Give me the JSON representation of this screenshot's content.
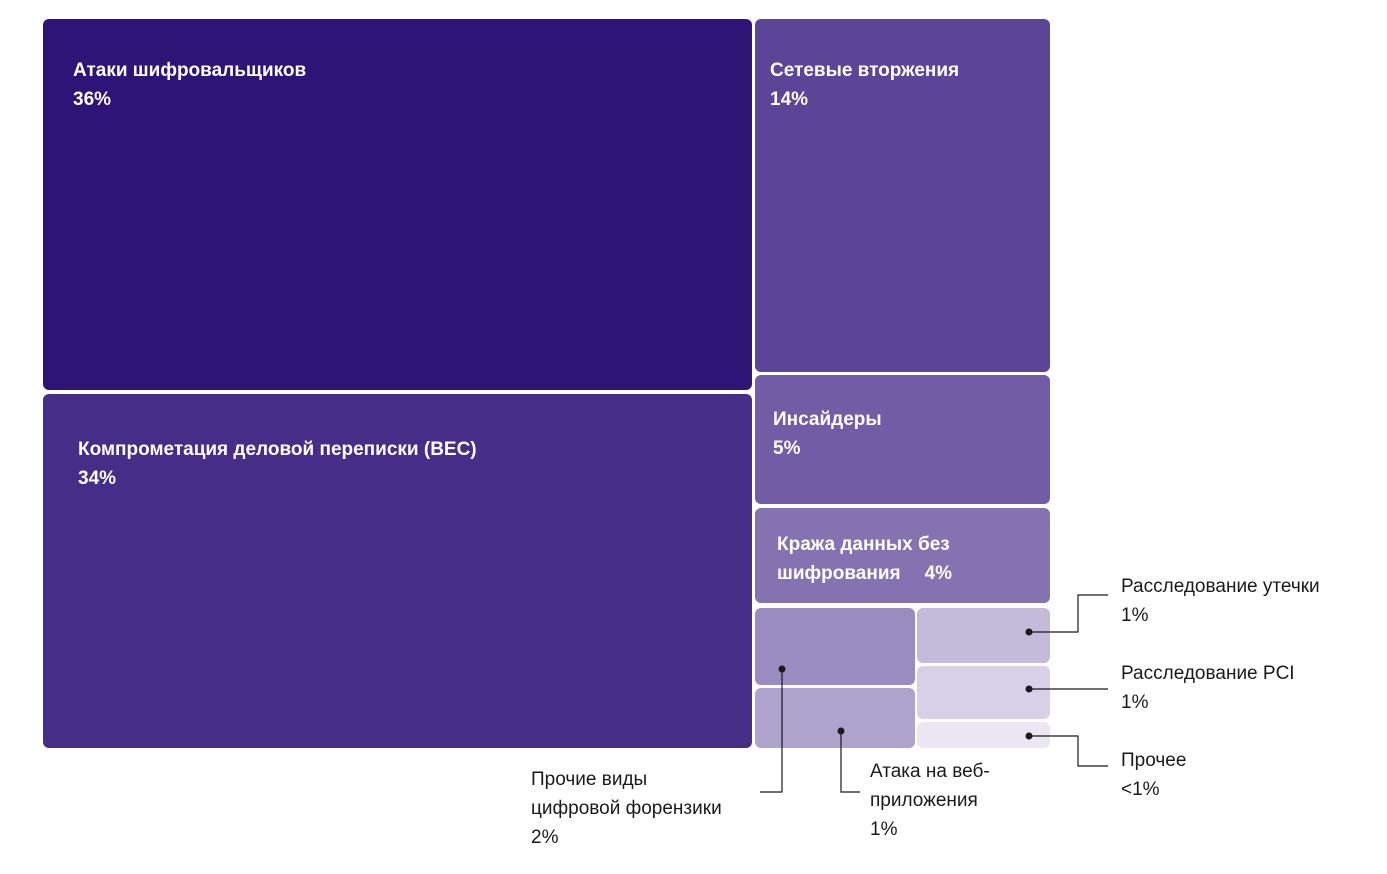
{
  "chart_data": {
    "type": "treemap",
    "items": [
      {
        "label": "Атаки шифровальщиков",
        "value_label": "36%",
        "value": 36,
        "color": "#2f1478"
      },
      {
        "label": "Компрометация деловой переписки (BEC)",
        "value_label": "34%",
        "value": 34,
        "color": "#452d88"
      },
      {
        "label": "Сетевые вторжения",
        "value_label": "14%",
        "value": 14,
        "color": "#5c4497"
      },
      {
        "label": "Инсайдеры",
        "value_label": "5%",
        "value": 5,
        "color": "#715ca5"
      },
      {
        "label_lines": [
          "Кража данных без",
          "шифрования"
        ],
        "value_label": "4%",
        "value": 4,
        "color": "#8472b1"
      },
      {
        "label_lines": [
          "Прочие виды",
          "цифровой форензики"
        ],
        "value_label": "2%",
        "value": 2,
        "color": "#9a8cc0"
      },
      {
        "label_lines": [
          "Атака на веб-",
          "приложения"
        ],
        "value_label": "1%",
        "value": 1,
        "color": "#aea3cc"
      },
      {
        "label": "Расследование утечки",
        "value_label": "1%",
        "value": 1,
        "color": "#c4bbdb"
      },
      {
        "label": "Расследование PCI",
        "value_label": "1%",
        "value": 1,
        "color": "#d7d1e7"
      },
      {
        "label": "Прочее",
        "value_label": "<1%",
        "value": 0.5,
        "color": "#eae7f3"
      }
    ]
  }
}
